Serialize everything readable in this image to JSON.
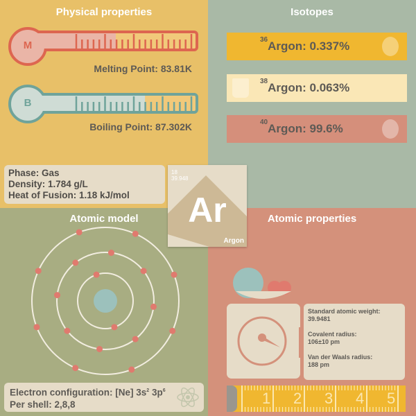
{
  "physical": {
    "title": "Physical properties",
    "melting": {
      "letter": "M",
      "label": "Melting Point: 83.81K",
      "fill": 0.5
    },
    "boiling": {
      "letter": "B",
      "label": "Boiling Point: 87.302K",
      "fill": 0.68
    },
    "phase": "Phase: Gas",
    "density": "Density: 1.784 g/L",
    "fusion": "Heat of Fusion: 1.18 kJ/mol"
  },
  "isotopes": {
    "title": "Isotopes",
    "items": [
      {
        "mass": "36",
        "text": "Argon: 0.337%",
        "color": "#f0b730",
        "icon": "mortar-pestle-icon"
      },
      {
        "mass": "38",
        "text": "Argon: 0.063%",
        "color": "#fae7b6",
        "icon": "erlenmeyer-flask-icon"
      },
      {
        "mass": "40",
        "text": "Argon: 99.6%",
        "color": "#d58f7b",
        "icon": "round-flask-icon"
      }
    ]
  },
  "element": {
    "number": "18",
    "weight": "39.948",
    "symbol": "Ar",
    "name": "Argon"
  },
  "atomic_model": {
    "title": "Atomic model",
    "config_prefix": "Electron configuration: [Ne] 3s",
    "sup1": "2",
    "mid": " 3p",
    "sup2": "6",
    "per_shell": "Per shell: 2,8,8",
    "shells": [
      2,
      8,
      8
    ]
  },
  "atomic_properties": {
    "title": "Atomic properties",
    "weight_label": "Standard atomic weight:",
    "weight": "39.9481",
    "covalent_label": "Covalent radius:",
    "covalent": "106±10 pm",
    "vdw_label": "Van der Waals radius:",
    "vdw": "188 pm",
    "ruler": [
      "1",
      "2",
      "3",
      "4",
      "5"
    ]
  }
}
